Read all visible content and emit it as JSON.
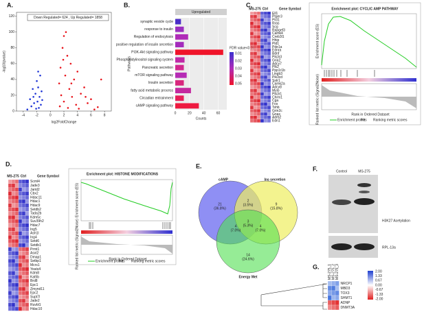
{
  "panel_labels": [
    "A.",
    "B.",
    "C.",
    "D.",
    "E.",
    "F.",
    "G."
  ],
  "volcano": {
    "type": "scatter",
    "summary": "Down Regulated= 624 , Up Regulated= 1858",
    "x_label": "log2FoldChange",
    "y_label": "-log10(pvalue)",
    "xlim": [
      -5,
      9
    ],
    "ylim": [
      0,
      125
    ],
    "xticks": [
      -4,
      -2,
      0,
      2,
      4,
      6,
      8
    ],
    "yticks": [
      0,
      20,
      40,
      60,
      80,
      100,
      120
    ],
    "series": [
      {
        "color": "#1f35d6",
        "x": [
          -1.5,
          -2,
          -1.8,
          -2.6,
          -1.3,
          -2.2,
          -1.6,
          -3,
          -1.9,
          -2.4,
          -1.4,
          -2.8,
          -1.7,
          -2.1,
          -3.4,
          -1.2,
          -2.5,
          -1.8
        ],
        "y": [
          45,
          38,
          30,
          28,
          25,
          22,
          18,
          15,
          12,
          10,
          8,
          6,
          4,
          3,
          2,
          14,
          18,
          50
        ]
      },
      {
        "color": "#e8141b",
        "x": [
          2,
          1.8,
          2.5,
          3,
          1.5,
          4,
          2.2,
          3.5,
          1.3,
          5,
          2.8,
          4.5,
          1.6,
          3.2,
          6,
          2,
          5.5,
          3.8,
          1.4,
          7,
          2.6,
          4.2,
          6.5,
          7.5,
          1.9,
          2.3,
          3.1,
          5.2
        ],
        "y": [
          95,
          80,
          70,
          60,
          55,
          50,
          45,
          40,
          35,
          30,
          28,
          22,
          20,
          18,
          15,
          12,
          10,
          8,
          6,
          5,
          4,
          3,
          2,
          40,
          65,
          100,
          35,
          18
        ]
      }
    ]
  },
  "pathways": {
    "type": "bar",
    "header": "Upregulated",
    "x_label": "Counts",
    "y_label": "Pathways",
    "legend_title": "FDR value<0.05",
    "legend_ticks": [
      0.01,
      0.02,
      0.03,
      0.04,
      0.05
    ],
    "categories": [
      "synaptic vesicle cycle",
      "response to insulin",
      "Regulation of endocytosis",
      "positive regulation of insulin secretion",
      "PI3K-Akt signaling pathway",
      "Phosphatidylinositol signaling system",
      "Pancreatic secretion",
      "mTOR signaling pathway",
      "Insulin secretion",
      "fatty acid metabolic process",
      "Circadian entrainment",
      "cAMP signaling pathway"
    ],
    "values": [
      8,
      12,
      18,
      12,
      67,
      13,
      12,
      16,
      12,
      22,
      12,
      33
    ],
    "colors": [
      "#4a2ec9",
      "#9b2fc0",
      "#b02cb8",
      "#a42cbc",
      "#f0142a",
      "#c02aa8",
      "#d22890",
      "#b62cb5",
      "#d8287e",
      "#c42aa0",
      "#e81f5a",
      "#ee1a40"
    ],
    "xlim": [
      0,
      72
    ],
    "xticks": [
      0,
      20,
      40,
      60
    ]
  },
  "gsea_c": {
    "columns": [
      "MS-275",
      "Ctrl",
      "Gene Symbol"
    ],
    "genes": [
      "Ell1",
      "Ptger3",
      "Plcl1",
      "Rras",
      "Scg",
      "Rapgef3",
      "Camk4",
      "Creb3l1",
      "Hhip",
      "Pld1",
      "Pde1a",
      "Ednra",
      "Bdnf",
      "Pik3r3",
      "Gria2",
      "Adcy7",
      "Plk2",
      "Ppp1r1b",
      "Lingb3",
      "Pik3cd",
      "Sstr1",
      "Camk2a",
      "Adcy8",
      "Mylo",
      "Pik3r1",
      "Chrm1",
      "Cga",
      "Fos",
      "Tshb",
      "Grin2c",
      "Gnas",
      "Adrb2",
      "Edn1"
    ],
    "title": "Enrichment plot: CYCLIC AMP PATHWAY",
    "es_label": "Enrichment score (ES)",
    "metric_label": "Ranked list metric (Signal2Noise)",
    "x_label": "Rank in Ordered Dataset",
    "legend": [
      "Enrichment profile",
      "Hits",
      "Ranking metric scores"
    ]
  },
  "gsea_d": {
    "columns": [
      "MS-275",
      "Ctrl",
      "Gene Symbol"
    ],
    "genes": [
      "Scml4",
      "Jade3",
      "Jarid2",
      "Cbx2",
      "Hdac11",
      "Hdac1",
      "Hdac9",
      "Setdb2",
      "Tada2b",
      "Kdm5c",
      "Suv39h2",
      "Hdac7",
      "Ing5",
      "Ash1l",
      "Ing4",
      "Setd6",
      "Setdb1",
      "Prmt1",
      "Asxl2",
      "Dmap1",
      "Setbp1",
      "Mcrs1",
      "Yeats4",
      "Kdm8",
      "Kat5b",
      "Brd8",
      "Epc1",
      "Zmynd11",
      "Epc2",
      "Supt7l",
      "Jade2",
      "Ruvbl1",
      "Hdac10"
    ],
    "title": "Enrichment plot: HISTONE MODIFICATIONS",
    "es_label": "Enrichment score (ES)",
    "metric_label": "Ranked list metric (Signal2Noise)",
    "x_label": "Rank in Ordered Dataset",
    "legend": [
      "Enrichment profile",
      "Hits",
      "Ranking metric scores"
    ]
  },
  "venn": {
    "sets": [
      "cAMP",
      "Ins secretion",
      "Energy Met"
    ],
    "regions": [
      {
        "count": "21",
        "percent": "(36.8%)"
      },
      {
        "count": "9",
        "percent": "(15.8%)"
      },
      {
        "count": "14",
        "percent": "(24.6%)"
      },
      {
        "count": "2",
        "percent": "(3.5%)"
      },
      {
        "count": "4",
        "percent": "(7.0%)"
      },
      {
        "count": "4",
        "percent": "(7.0%)"
      },
      {
        "count": "3",
        "percent": "(5.3%)"
      }
    ]
  },
  "western": {
    "lanes": [
      "Control",
      "MS-275"
    ],
    "bands": [
      "H3K27 Acetylation",
      "RPL-13a"
    ]
  },
  "heatmap_g": {
    "columns": [
      "MS-275_1",
      "MS-275_2",
      "MS-275_3"
    ],
    "rows": [
      "NRCP1",
      "MBD3",
      "TOX3",
      "SHMT1",
      "ADNP",
      "DNMT3A"
    ],
    "scale": [
      {
        "value": 2,
        "label": "2.00"
      },
      {
        "value": 1.33,
        "label": "1.33"
      },
      {
        "value": 0.67,
        "label": "0.67"
      },
      {
        "value": 0,
        "label": "0.00"
      },
      {
        "value": -0.67,
        "label": "-0.67"
      },
      {
        "value": -1.33,
        "label": "-1.33"
      },
      {
        "value": -2,
        "label": "-2.00"
      }
    ]
  }
}
